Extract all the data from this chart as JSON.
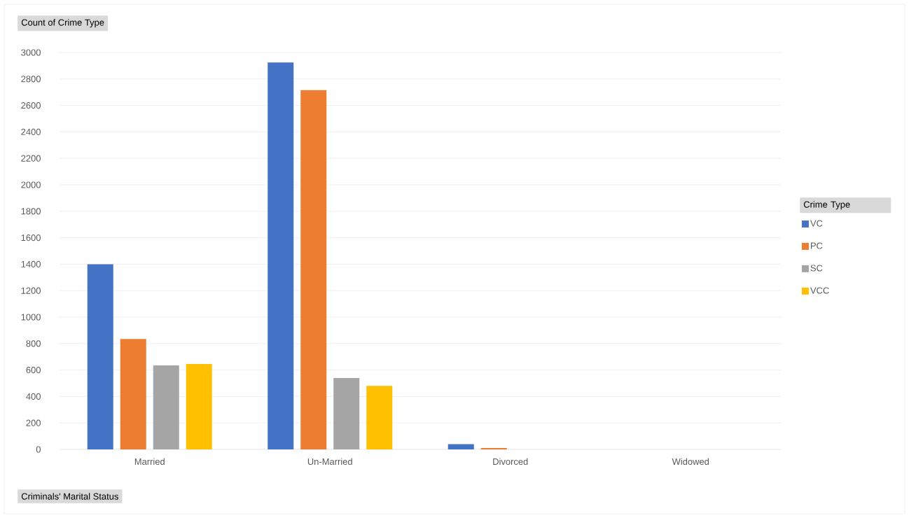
{
  "chart_data": {
    "type": "bar",
    "ylabel": "Count of Crime Type",
    "xlabel": "Criminals' Marital Status",
    "legend_title": "Crime Type",
    "categories": [
      "Married",
      "Un-Married",
      "Divorced",
      "Widowed"
    ],
    "series": [
      {
        "name": "VC",
        "color": "#4472c4",
        "values": [
          1400,
          2925,
          40,
          null
        ]
      },
      {
        "name": "PC",
        "color": "#ed7d31",
        "values": [
          835,
          2715,
          10,
          null
        ]
      },
      {
        "name": "SC",
        "color": "#a5a5a5",
        "values": [
          635,
          540,
          null,
          null
        ]
      },
      {
        "name": "VCC",
        "color": "#ffc000",
        "values": [
          645,
          480,
          null,
          null
        ]
      }
    ],
    "ylim": [
      0,
      3000
    ],
    "yticks": [
      0,
      200,
      400,
      600,
      800,
      1000,
      1200,
      1400,
      1600,
      1800,
      2000,
      2200,
      2400,
      2600,
      2800,
      3000
    ],
    "grid": "y",
    "legend": "right"
  }
}
